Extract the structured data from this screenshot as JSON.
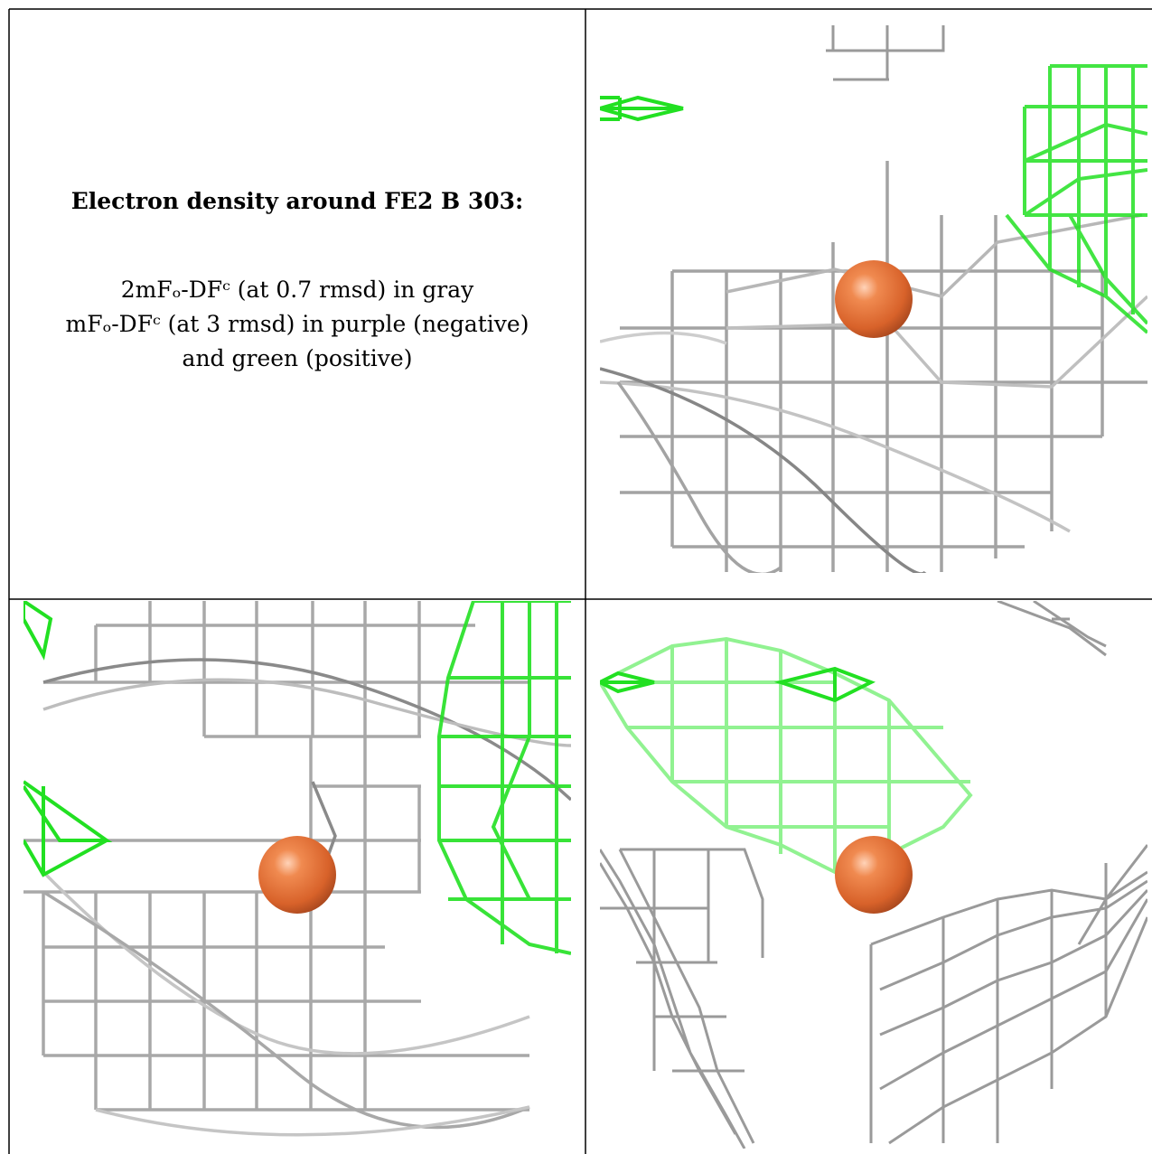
{
  "caption": {
    "title": "Electron density around FE2 B 303:",
    "line1": "2mFₒ-DFᶜ (at 0.7 rmsd) in gray",
    "line2": "mFₒ-DFᶜ (at 3 rmsd) in purple (negative)",
    "line3": "and green (positive)"
  },
  "colors": {
    "density_2fofc": "#9a9a9a",
    "density_positive": "#22e022",
    "density_negative": "#8a2be2",
    "atom": "#e2703a",
    "border": "#000000"
  },
  "panels": [
    {
      "name": "view-top-right",
      "atom": "FE2 B 303"
    },
    {
      "name": "view-bottom-left",
      "atom": "FE2 B 303"
    },
    {
      "name": "view-bottom-right",
      "atom": "FE2 B 303"
    }
  ]
}
